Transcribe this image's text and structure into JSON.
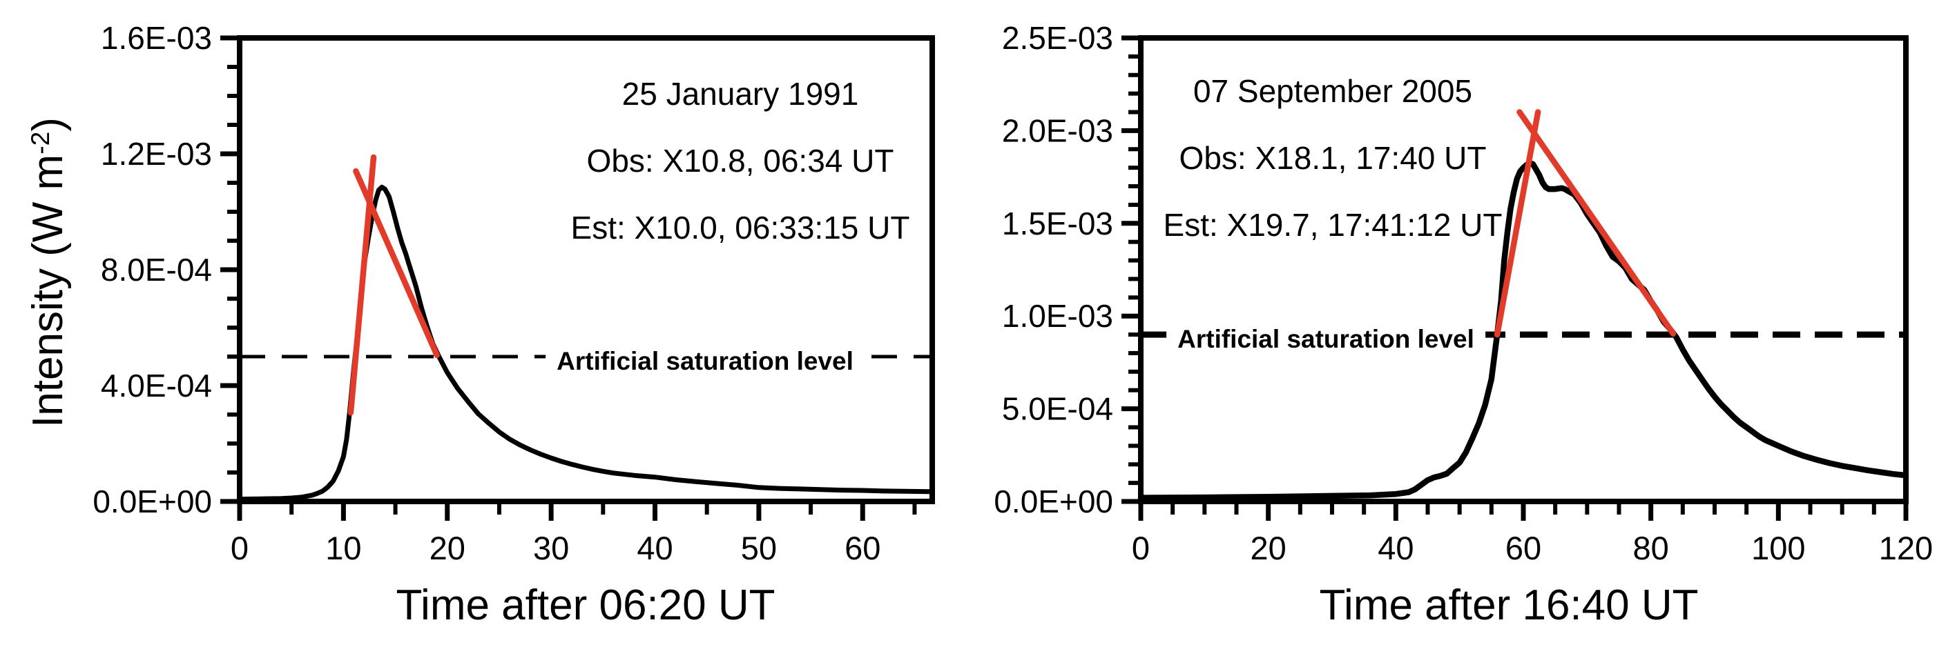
{
  "figure": {
    "background": "#ffffff",
    "curve_color": "#000000",
    "fit_color": "#e23b2a",
    "y_axis_title": {
      "prefix": "Intensity (W m",
      "sup": "-2",
      "suffix": ")"
    }
  },
  "chart_data": [
    {
      "type": "line",
      "panel": "left",
      "annotation": [
        "25 January 1991",
        "Obs: X10.8, 06:34 UT",
        "Est: X10.0, 06:33:15 UT"
      ],
      "xlabel": "Time after 06:20 UT",
      "xlim": [
        0,
        66.7
      ],
      "ylim": [
        0,
        0.0016
      ],
      "x_major_ticks": [
        0,
        10,
        20,
        30,
        40,
        50,
        60
      ],
      "x_tick_labels": [
        "0",
        "10",
        "20",
        "30",
        "40",
        "50",
        "60"
      ],
      "x_minor_ticks": [
        5,
        15,
        25,
        35,
        45,
        55,
        65
      ],
      "y_major_ticks": [
        0,
        0.0004,
        0.0008,
        0.0012,
        0.0016
      ],
      "y_tick_labels": [
        "0.0E+00",
        "4.0E-04",
        "8.0E-04",
        "1.2E-03",
        "1.6E-03"
      ],
      "y_minor_ticks": [
        0.0001,
        0.0002,
        0.0003,
        0.0005,
        0.0006,
        0.0007,
        0.0009,
        0.001,
        0.0011,
        0.0013,
        0.0014,
        0.0015
      ],
      "saturation": {
        "level": 0.0005,
        "label": "Artificial saturation level"
      },
      "series": [
        {
          "name": "goes-flux",
          "role": "flux",
          "points": [
            [
              0,
              8e-06
            ],
            [
              2,
              9e-06
            ],
            [
              4,
              1e-05
            ],
            [
              5,
              1.2e-05
            ],
            [
              6,
              1.5e-05
            ],
            [
              7,
              2.2e-05
            ],
            [
              7.5,
              2.8e-05
            ],
            [
              8,
              3.6e-05
            ],
            [
              8.5,
              5e-05
            ],
            [
              9,
              7e-05
            ],
            [
              9.5,
              0.000105
            ],
            [
              10,
              0.000155
            ],
            [
              10.3,
              0.000215
            ],
            [
              10.6,
              0.00031
            ],
            [
              11,
              0.00046
            ],
            [
              11.3,
              0.00056
            ],
            [
              11.6,
              0.00068
            ],
            [
              12,
              0.00082
            ],
            [
              12.4,
              0.00091
            ],
            [
              12.8,
              0.00099
            ],
            [
              13.1,
              0.00104
            ],
            [
              13.4,
              0.001075
            ],
            [
              13.7,
              0.001085
            ],
            [
              14,
              0.001078
            ],
            [
              14.4,
              0.001052
            ],
            [
              14.8,
              0.001
            ],
            [
              15.2,
              0.000945
            ],
            [
              15.6,
              0.000895
            ],
            [
              16,
              0.000855
            ],
            [
              16.3,
              0.00082
            ],
            [
              16.7,
              0.000775
            ],
            [
              17,
              0.00074
            ],
            [
              17.5,
              0.00067
            ],
            [
              18,
              0.00061
            ],
            [
              18.6,
              0.000545
            ],
            [
              19.2,
              0.0005
            ],
            [
              20,
              0.000445
            ],
            [
              21,
              0.00039
            ],
            [
              22,
              0.000345
            ],
            [
              23,
              0.000302
            ],
            [
              24,
              0.00027
            ],
            [
              25,
              0.00024
            ],
            [
              26,
              0.000215
            ],
            [
              27,
              0.000195
            ],
            [
              28,
              0.000178
            ],
            [
              29,
              0.000163
            ],
            [
              30,
              0.00015
            ],
            [
              31,
              0.000138
            ],
            [
              32,
              0.000128
            ],
            [
              33,
              0.000119
            ],
            [
              34,
              0.000111
            ],
            [
              35,
              0.000104
            ],
            [
              36,
              9.8e-05
            ],
            [
              38,
              9e-05
            ],
            [
              40,
              8.4e-05
            ],
            [
              42,
              7.5e-05
            ],
            [
              44,
              6.8e-05
            ],
            [
              46,
              6.2e-05
            ],
            [
              48,
              5.6e-05
            ],
            [
              50,
              4.8e-05
            ],
            [
              52,
              4.5e-05
            ],
            [
              54,
              4.3e-05
            ],
            [
              56,
              4.1e-05
            ],
            [
              58,
              3.9e-05
            ],
            [
              60,
              3.8e-05
            ],
            [
              62,
              3.6e-05
            ],
            [
              64,
              3.5e-05
            ],
            [
              66.5,
              3.4e-05
            ]
          ]
        },
        {
          "name": "rise-fit",
          "role": "fit",
          "points": [
            [
              10.7,
              0.000307
            ],
            [
              12.9,
              0.001188
            ]
          ]
        },
        {
          "name": "decay-fit",
          "role": "fit",
          "points": [
            [
              11.2,
              0.00114
            ],
            [
              19.0,
              0.000505
            ]
          ]
        }
      ]
    },
    {
      "type": "line",
      "panel": "right",
      "annotation": [
        "07 September 2005",
        "Obs: X18.1, 17:40 UT",
        "Est: X19.7, 17:41:12 UT"
      ],
      "xlabel": "Time after 16:40 UT",
      "xlim": [
        0,
        120
      ],
      "ylim": [
        0,
        0.0025
      ],
      "x_major_ticks": [
        0,
        20,
        40,
        60,
        80,
        100,
        120
      ],
      "x_tick_labels": [
        "0",
        "20",
        "40",
        "60",
        "80",
        "100",
        "120"
      ],
      "x_minor_ticks": [
        5,
        10,
        15,
        25,
        30,
        35,
        45,
        50,
        55,
        65,
        70,
        75,
        85,
        90,
        95,
        105,
        110,
        115
      ],
      "y_major_ticks": [
        0,
        0.0005,
        0.001,
        0.0015,
        0.002,
        0.0025
      ],
      "y_tick_labels": [
        "0.0E+00",
        "5.0E-04",
        "1.0E-03",
        "1.5E-03",
        "2.0E-03",
        "2.5E-03"
      ],
      "y_minor_ticks": [
        0.0001,
        0.0002,
        0.0003,
        0.0004,
        0.0006,
        0.0007,
        0.0008,
        0.0009,
        0.0011,
        0.0012,
        0.0013,
        0.0014,
        0.0016,
        0.0017,
        0.0018,
        0.0019,
        0.0021,
        0.0022,
        0.0023,
        0.0024
      ],
      "saturation": {
        "level": 0.0009,
        "label": "Artificial saturation level"
      },
      "series": [
        {
          "name": "goes-flux",
          "role": "flux",
          "points": [
            [
              0,
              2e-05
            ],
            [
              10,
              2.2e-05
            ],
            [
              20,
              2.5e-05
            ],
            [
              30,
              3e-05
            ],
            [
              36,
              3.3e-05
            ],
            [
              40,
              4e-05
            ],
            [
              42,
              5e-05
            ],
            [
              43,
              6.5e-05
            ],
            [
              44,
              9e-05
            ],
            [
              45,
              0.000115
            ],
            [
              46,
              0.00013
            ],
            [
              47,
              0.000138
            ],
            [
              48,
              0.00015
            ],
            [
              49,
              0.00018
            ],
            [
              50,
              0.00021
            ],
            [
              51,
              0.000265
            ],
            [
              52,
              0.00034
            ],
            [
              53,
              0.00042
            ],
            [
              54,
              0.00052
            ],
            [
              55,
              0.00066
            ],
            [
              55.9,
              0.0009
            ],
            [
              56.5,
              0.00108
            ],
            [
              57,
              0.0013
            ],
            [
              57.5,
              0.00145
            ],
            [
              58,
              0.00158
            ],
            [
              58.5,
              0.00167
            ],
            [
              59,
              0.00174
            ],
            [
              59.5,
              0.00178
            ],
            [
              60,
              0.0018
            ],
            [
              60.5,
              0.001815
            ],
            [
              61,
              0.001825
            ],
            [
              61.5,
              0.00182
            ],
            [
              62,
              0.00179
            ],
            [
              62.5,
              0.00176
            ],
            [
              63,
              0.00172
            ],
            [
              63.5,
              0.001695
            ],
            [
              64,
              0.001685
            ],
            [
              65,
              0.001685
            ],
            [
              66,
              0.00169
            ],
            [
              66.5,
              0.001685
            ],
            [
              67,
              0.001675
            ],
            [
              68,
              0.001655
            ],
            [
              69,
              0.00161
            ],
            [
              70,
              0.00155
            ],
            [
              71,
              0.0015
            ],
            [
              72,
              0.00145
            ],
            [
              73,
              0.00138
            ],
            [
              74,
              0.00132
            ],
            [
              75,
              0.001295
            ],
            [
              76,
              0.00126
            ],
            [
              77,
              0.0012
            ],
            [
              78,
              0.00117
            ],
            [
              79,
              0.00114
            ],
            [
              80,
              0.00108
            ],
            [
              81,
              0.00103
            ],
            [
              82,
              0.00097
            ],
            [
              83,
              0.00093
            ],
            [
              84,
              0.000885
            ],
            [
              85,
              0.00082
            ],
            [
              86,
              0.00076
            ],
            [
              87,
              0.00071
            ],
            [
              88,
              0.00066
            ],
            [
              89,
              0.00061
            ],
            [
              90,
              0.000565
            ],
            [
              91,
              0.000525
            ],
            [
              92,
              0.00049
            ],
            [
              93,
              0.000455
            ],
            [
              94,
              0.000425
            ],
            [
              95,
              0.0004
            ],
            [
              96,
              0.000375
            ],
            [
              97,
              0.00035
            ],
            [
              98,
              0.00033
            ],
            [
              99,
              0.000315
            ],
            [
              100,
              0.0003
            ],
            [
              102,
              0.00027
            ],
            [
              104,
              0.000245
            ],
            [
              106,
              0.000225
            ],
            [
              108,
              0.000207
            ],
            [
              110,
              0.000192
            ],
            [
              112,
              0.00018
            ],
            [
              114,
              0.000168
            ],
            [
              116,
              0.000158
            ],
            [
              118,
              0.000148
            ],
            [
              120,
              0.000141
            ]
          ]
        },
        {
          "name": "rise-fit",
          "role": "fit",
          "points": [
            [
              55.9,
              0.0009
            ],
            [
              62.3,
              0.0021
            ]
          ]
        },
        {
          "name": "decay-fit",
          "role": "fit",
          "points": [
            [
              59.4,
              0.0021
            ],
            [
              83.5,
              0.000905
            ]
          ]
        }
      ]
    }
  ]
}
